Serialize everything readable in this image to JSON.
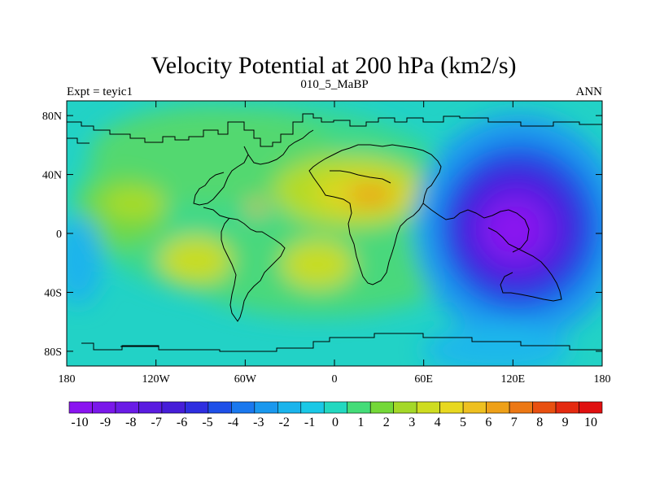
{
  "title": "Velocity Potential at 200 hPa (km2/s)",
  "left_label": "Expt = teyic1",
  "center_label": "010_5_MaBP",
  "right_label": "ANN",
  "lat_ticks": [
    {
      "label": "80N",
      "lat": 80
    },
    {
      "label": "40N",
      "lat": 40
    },
    {
      "label": "0",
      "lat": 0
    },
    {
      "label": "40S",
      "lat": -40
    },
    {
      "label": "80S",
      "lat": -80
    }
  ],
  "lon_ticks": [
    {
      "label": "180",
      "lon": -180
    },
    {
      "label": "120W",
      "lon": -120
    },
    {
      "label": "60W",
      "lon": -60
    },
    {
      "label": "0",
      "lon": 0
    },
    {
      "label": "60E",
      "lon": 60
    },
    {
      "label": "120E",
      "lon": 120
    },
    {
      "label": "180",
      "lon": 180
    }
  ],
  "colorbar": {
    "labels": [
      "-10",
      "-9",
      "-8",
      "-7",
      "-6",
      "-5",
      "-4",
      "-3",
      "-2",
      "-1",
      "0",
      "1",
      "2",
      "3",
      "4",
      "5",
      "6",
      "7",
      "8",
      "9",
      "10"
    ],
    "colors": [
      "#8a14f0",
      "#7a18ea",
      "#6a1ce6",
      "#5a1ce0",
      "#461ed8",
      "#2e2ee0",
      "#1e50e8",
      "#1a78ee",
      "#1a98ee",
      "#1ab4ec",
      "#1ac8e6",
      "#22d8c0",
      "#44dc78",
      "#74d838",
      "#a4d828",
      "#cedc20",
      "#e8d820",
      "#eec020",
      "#eea018",
      "#ec7814",
      "#e85010",
      "#e42a10",
      "#e01010"
    ]
  }
}
